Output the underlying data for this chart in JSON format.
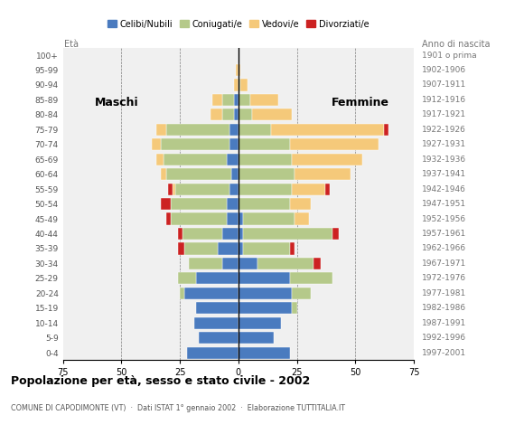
{
  "age_groups": [
    "0-4",
    "5-9",
    "10-14",
    "15-19",
    "20-24",
    "25-29",
    "30-34",
    "35-39",
    "40-44",
    "45-49",
    "50-54",
    "55-59",
    "60-64",
    "65-69",
    "70-74",
    "75-79",
    "80-84",
    "85-89",
    "90-94",
    "95-99",
    "100+"
  ],
  "birth_years": [
    "1997-2001",
    "1992-1996",
    "1987-1991",
    "1982-1986",
    "1977-1981",
    "1972-1976",
    "1967-1971",
    "1962-1966",
    "1957-1961",
    "1952-1956",
    "1947-1951",
    "1942-1946",
    "1937-1941",
    "1932-1936",
    "1927-1931",
    "1922-1926",
    "1917-1921",
    "1912-1916",
    "1907-1911",
    "1902-1906",
    "1901 o prima"
  ],
  "males": {
    "celibe": [
      22,
      17,
      19,
      18,
      23,
      18,
      7,
      9,
      7,
      5,
      5,
      4,
      3,
      5,
      4,
      4,
      2,
      2,
      0,
      0,
      0
    ],
    "coniugato": [
      0,
      0,
      0,
      0,
      2,
      8,
      14,
      14,
      17,
      24,
      24,
      23,
      28,
      27,
      29,
      27,
      5,
      5,
      0,
      0,
      0
    ],
    "vedovo": [
      0,
      0,
      0,
      0,
      0,
      0,
      0,
      0,
      0,
      0,
      0,
      1,
      2,
      3,
      4,
      4,
      5,
      4,
      2,
      1,
      0
    ],
    "divorziato": [
      0,
      0,
      0,
      0,
      0,
      0,
      0,
      3,
      2,
      2,
      4,
      2,
      0,
      0,
      0,
      0,
      0,
      0,
      0,
      0,
      0
    ]
  },
  "females": {
    "nubile": [
      22,
      15,
      18,
      23,
      23,
      22,
      8,
      2,
      2,
      2,
      0,
      0,
      0,
      0,
      0,
      0,
      0,
      0,
      0,
      0,
      0
    ],
    "coniugata": [
      0,
      0,
      0,
      2,
      8,
      18,
      24,
      20,
      38,
      22,
      22,
      23,
      24,
      23,
      22,
      14,
      6,
      5,
      1,
      0,
      0
    ],
    "vedova": [
      0,
      0,
      0,
      0,
      0,
      0,
      0,
      0,
      0,
      6,
      9,
      14,
      24,
      30,
      38,
      48,
      17,
      12,
      3,
      1,
      0
    ],
    "divorziata": [
      0,
      0,
      0,
      0,
      0,
      0,
      3,
      2,
      3,
      0,
      0,
      2,
      0,
      0,
      0,
      2,
      0,
      0,
      0,
      0,
      0
    ]
  },
  "colors": {
    "celibe": "#4a7bbf",
    "coniugato": "#b5c98a",
    "vedovo": "#f5c97a",
    "divorziato": "#cc2222"
  },
  "xlim": 75,
  "title": "Popolazione per età, sesso e stato civile - 2002",
  "subtitle": "COMUNE DI CAPODIMONTE (VT)  ·  Dati ISTAT 1° gennaio 2002  ·  Elaborazione TUTTITALIA.IT",
  "ylabel_left": "Età",
  "ylabel_right": "Anno di nascita",
  "legend_labels": [
    "Celibi/Nubili",
    "Coniugati/e",
    "Vedovi/e",
    "Divorziati/e"
  ],
  "bar_height": 0.8,
  "background_color": "#ffffff",
  "plot_bg_color": "#f0f0f0"
}
